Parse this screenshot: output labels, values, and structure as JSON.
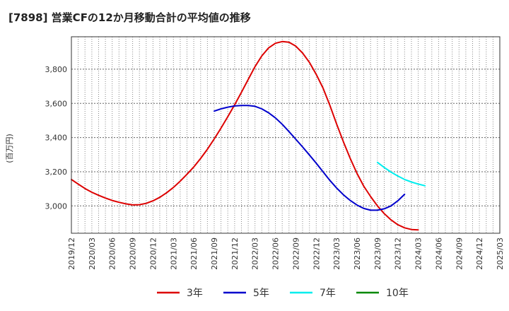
{
  "chart_data": {
    "type": "line",
    "title": "[7898]  営業CFの12か月移動合計の平均値の推移",
    "ylabel": "(百万円)",
    "xlabel": "",
    "ylim": [
      2840,
      3990
    ],
    "yticks": [
      3000,
      3200,
      3400,
      3600,
      3800
    ],
    "ytick_labels": [
      "3,000",
      "3,200",
      "3,400",
      "3,600",
      "3,800"
    ],
    "xlim": [
      "2019-12",
      "2025-03"
    ],
    "xtick_labels": [
      "2019/12",
      "2020/03",
      "2020/06",
      "2020/09",
      "2020/12",
      "2021/03",
      "2021/06",
      "2021/09",
      "2021/12",
      "2022/03",
      "2022/06",
      "2022/09",
      "2022/12",
      "2023/03",
      "2023/06",
      "2023/09",
      "2023/12",
      "2024/03",
      "2024/06",
      "2024/09",
      "2024/12",
      "2025/03"
    ],
    "grid": true,
    "legend_position": "bottom",
    "series": [
      {
        "name": "3年",
        "color": "#dd0000",
        "points": [
          [
            "2019-12",
            3155
          ],
          [
            "2020-01",
            3128
          ],
          [
            "2020-02",
            3102
          ],
          [
            "2020-03",
            3080
          ],
          [
            "2020-04",
            3062
          ],
          [
            "2020-05",
            3046
          ],
          [
            "2020-06",
            3032
          ],
          [
            "2020-07",
            3021
          ],
          [
            "2020-08",
            3012
          ],
          [
            "2020-09",
            3006
          ],
          [
            "2020-10",
            3007
          ],
          [
            "2020-11",
            3015
          ],
          [
            "2020-12",
            3030
          ],
          [
            "2021-01",
            3050
          ],
          [
            "2021-02",
            3077
          ],
          [
            "2021-03",
            3108
          ],
          [
            "2021-04",
            3145
          ],
          [
            "2021-05",
            3185
          ],
          [
            "2021-06",
            3228
          ],
          [
            "2021-07",
            3278
          ],
          [
            "2021-08",
            3332
          ],
          [
            "2021-09",
            3392
          ],
          [
            "2021-10",
            3455
          ],
          [
            "2021-11",
            3522
          ],
          [
            "2021-12",
            3592
          ],
          [
            "2022-01",
            3665
          ],
          [
            "2022-02",
            3740
          ],
          [
            "2022-03",
            3815
          ],
          [
            "2022-04",
            3878
          ],
          [
            "2022-05",
            3925
          ],
          [
            "2022-06",
            3952
          ],
          [
            "2022-07",
            3962
          ],
          [
            "2022-08",
            3958
          ],
          [
            "2022-09",
            3935
          ],
          [
            "2022-10",
            3895
          ],
          [
            "2022-11",
            3840
          ],
          [
            "2022-12",
            3770
          ],
          [
            "2023-01",
            3690
          ],
          [
            "2023-02",
            3590
          ],
          [
            "2023-03",
            3480
          ],
          [
            "2023-04",
            3375
          ],
          [
            "2023-05",
            3278
          ],
          [
            "2023-06",
            3190
          ],
          [
            "2023-07",
            3115
          ],
          [
            "2023-08",
            3055
          ],
          [
            "2023-09",
            3000
          ],
          [
            "2023-10",
            2955
          ],
          [
            "2023-11",
            2918
          ],
          [
            "2023-12",
            2890
          ],
          [
            "2024-01",
            2872
          ],
          [
            "2024-02",
            2862
          ],
          [
            "2024-03",
            2860
          ]
        ]
      },
      {
        "name": "5年",
        "color": "#0000cc",
        "points": [
          [
            "2021-09",
            3555
          ],
          [
            "2021-10",
            3568
          ],
          [
            "2021-11",
            3578
          ],
          [
            "2021-12",
            3585
          ],
          [
            "2022-01",
            3588
          ],
          [
            "2022-02",
            3588
          ],
          [
            "2022-03",
            3583
          ],
          [
            "2022-04",
            3568
          ],
          [
            "2022-05",
            3545
          ],
          [
            "2022-06",
            3515
          ],
          [
            "2022-07",
            3478
          ],
          [
            "2022-08",
            3435
          ],
          [
            "2022-09",
            3390
          ],
          [
            "2022-10",
            3345
          ],
          [
            "2022-11",
            3298
          ],
          [
            "2022-12",
            3250
          ],
          [
            "2023-01",
            3200
          ],
          [
            "2023-02",
            3150
          ],
          [
            "2023-03",
            3105
          ],
          [
            "2023-04",
            3065
          ],
          [
            "2023-05",
            3032
          ],
          [
            "2023-06",
            3005
          ],
          [
            "2023-07",
            2985
          ],
          [
            "2023-08",
            2975
          ],
          [
            "2023-09",
            2975
          ],
          [
            "2023-10",
            2983
          ],
          [
            "2023-11",
            3000
          ],
          [
            "2023-12",
            3030
          ],
          [
            "2024-01",
            3068
          ]
        ]
      },
      {
        "name": "7年",
        "color": "#00eeee",
        "points": [
          [
            "2023-09",
            3255
          ],
          [
            "2023-10",
            3225
          ],
          [
            "2023-11",
            3198
          ],
          [
            "2023-12",
            3175
          ],
          [
            "2024-01",
            3155
          ],
          [
            "2024-02",
            3140
          ],
          [
            "2024-03",
            3128
          ],
          [
            "2024-04",
            3118
          ]
        ]
      },
      {
        "name": "10年",
        "color": "#008800",
        "points": []
      }
    ]
  }
}
